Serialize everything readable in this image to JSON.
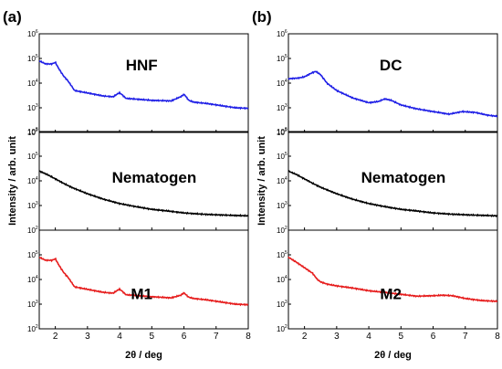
{
  "chart_data": [
    {
      "panel": "(a)",
      "type": "line",
      "xlabel": "2θ / deg",
      "ylabel": "Intensity / arb. unit",
      "xlim": [
        1.5,
        8
      ],
      "x_ticks": [
        "2",
        "3",
        "4",
        "5",
        "6",
        "7",
        "8"
      ],
      "y_scale": "log",
      "subplots": [
        {
          "label": "HNF",
          "color": "#1f1fe6",
          "ylim": [
            100,
            1000000
          ],
          "y_ticks": [
            {
              "base": "10",
              "exp": "2"
            },
            {
              "base": "10",
              "exp": "3"
            },
            {
              "base": "10",
              "exp": "4"
            },
            {
              "base": "10",
              "exp": "5"
            },
            {
              "base": "10",
              "exp": "6"
            }
          ],
          "x": [
            1.5,
            1.7,
            1.9,
            2.0,
            2.1,
            2.25,
            2.4,
            2.6,
            3.0,
            3.5,
            3.8,
            3.95,
            4.0,
            4.05,
            4.2,
            4.6,
            5.0,
            5.6,
            5.9,
            6.0,
            6.05,
            6.15,
            6.3,
            6.7,
            7.2,
            7.6,
            8.0
          ],
          "y": [
            80000,
            60000,
            60000,
            70000,
            40000,
            20000,
            12000,
            5000,
            4000,
            3000,
            2800,
            3800,
            4000,
            3600,
            2400,
            2200,
            2000,
            1900,
            2800,
            3500,
            3000,
            2000,
            1700,
            1500,
            1200,
            1000,
            950
          ]
        },
        {
          "label": "Nematogen",
          "color": "#000000",
          "ylim": [
            100,
            1000000
          ],
          "y_ticks": [
            {
              "base": "10",
              "exp": "2"
            },
            {
              "base": "10",
              "exp": "3"
            },
            {
              "base": "10",
              "exp": "4"
            },
            {
              "base": "10",
              "exp": "5"
            },
            {
              "base": "10",
              "exp": "6"
            }
          ],
          "x": [
            1.5,
            1.75,
            2.0,
            2.25,
            2.5,
            3.0,
            3.5,
            4.0,
            4.5,
            5.0,
            5.5,
            6.0,
            6.5,
            7.0,
            7.5,
            8.0
          ],
          "y": [
            25000,
            18000,
            12000,
            8000,
            5500,
            3000,
            1800,
            1200,
            900,
            700,
            600,
            500,
            450,
            420,
            400,
            380
          ]
        },
        {
          "label": "M1",
          "color": "#e61c1c",
          "ylim": [
            100,
            1000000
          ],
          "y_ticks": [
            {
              "base": "10",
              "exp": "2"
            },
            {
              "base": "10",
              "exp": "3"
            },
            {
              "base": "10",
              "exp": "4"
            },
            {
              "base": "10",
              "exp": "5"
            }
          ],
          "x": [
            1.5,
            1.7,
            1.9,
            2.0,
            2.1,
            2.25,
            2.4,
            2.6,
            3.0,
            3.5,
            3.8,
            3.95,
            4.0,
            4.05,
            4.2,
            4.6,
            5.0,
            5.6,
            5.9,
            6.0,
            6.05,
            6.15,
            6.3,
            6.7,
            7.2,
            7.6,
            8.0
          ],
          "y": [
            80000,
            60000,
            60000,
            70000,
            40000,
            20000,
            12000,
            5000,
            4000,
            3000,
            2800,
            3800,
            4000,
            3600,
            2400,
            2200,
            2000,
            1800,
            2300,
            2900,
            2500,
            1900,
            1700,
            1500,
            1200,
            1000,
            950
          ]
        }
      ]
    },
    {
      "panel": "(b)",
      "type": "line",
      "xlabel": "2θ / deg",
      "ylabel": "Intensity / arb. unit",
      "xlim": [
        1.5,
        8
      ],
      "x_ticks": [
        "2",
        "3",
        "4",
        "5",
        "6",
        "7",
        "8"
      ],
      "y_scale": "log",
      "subplots": [
        {
          "label": "DC",
          "color": "#1f1fe6",
          "ylim": [
            100,
            1000000
          ],
          "y_ticks": [
            {
              "base": "10",
              "exp": "2"
            },
            {
              "base": "10",
              "exp": "3"
            },
            {
              "base": "10",
              "exp": "4"
            },
            {
              "base": "10",
              "exp": "5"
            },
            {
              "base": "10",
              "exp": "6"
            }
          ],
          "x": [
            1.5,
            1.8,
            2.0,
            2.2,
            2.35,
            2.5,
            2.7,
            3.0,
            3.5,
            4.0,
            4.3,
            4.5,
            4.7,
            5.0,
            5.5,
            6.0,
            6.5,
            6.9,
            7.3,
            7.7,
            8.0
          ],
          "y": [
            15000,
            16000,
            18000,
            25000,
            30000,
            22000,
            10000,
            5000,
            2500,
            1600,
            1800,
            2300,
            2000,
            1300,
            900,
            700,
            550,
            700,
            650,
            500,
            450
          ]
        },
        {
          "label": "Nematogen",
          "color": "#000000",
          "ylim": [
            100,
            1000000
          ],
          "y_ticks": [
            {
              "base": "10",
              "exp": "2"
            },
            {
              "base": "10",
              "exp": "3"
            },
            {
              "base": "10",
              "exp": "4"
            },
            {
              "base": "10",
              "exp": "5"
            },
            {
              "base": "10",
              "exp": "6"
            }
          ],
          "x": [
            1.5,
            1.75,
            2.0,
            2.25,
            2.5,
            3.0,
            3.5,
            4.0,
            4.5,
            5.0,
            5.5,
            6.0,
            6.5,
            7.0,
            7.5,
            8.0
          ],
          "y": [
            25000,
            18000,
            12000,
            8000,
            5500,
            3000,
            1800,
            1200,
            900,
            700,
            600,
            500,
            450,
            420,
            400,
            380
          ]
        },
        {
          "label": "M2",
          "color": "#e61c1c",
          "ylim": [
            100,
            1000000
          ],
          "y_ticks": [
            {
              "base": "10",
              "exp": "2"
            },
            {
              "base": "10",
              "exp": "3"
            },
            {
              "base": "10",
              "exp": "4"
            },
            {
              "base": "10",
              "exp": "5"
            }
          ],
          "x": [
            1.5,
            1.75,
            2.0,
            2.25,
            2.4,
            2.5,
            2.7,
            3.0,
            3.5,
            4.0,
            4.5,
            5.0,
            5.5,
            6.0,
            6.3,
            6.6,
            7.0,
            7.5,
            8.0
          ],
          "y": [
            80000,
            50000,
            30000,
            18000,
            10000,
            8000,
            6500,
            5500,
            4500,
            3500,
            3000,
            2500,
            2100,
            2200,
            2300,
            2200,
            1700,
            1400,
            1300
          ]
        }
      ]
    }
  ]
}
